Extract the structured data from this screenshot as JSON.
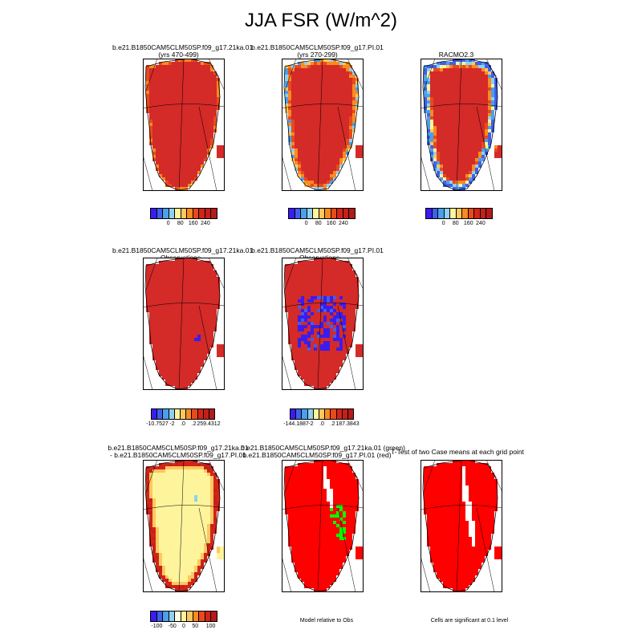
{
  "title": "JJA FSR (W/m^2)",
  "colors": {
    "scale11": [
      "#3b1cf0",
      "#4060ea",
      "#4aa0ea",
      "#8fd0f0",
      "#fdf49c",
      "#fdc860",
      "#fb8a20",
      "#e84a1c",
      "#d42418",
      "#c4201a",
      "#b41a1a"
    ],
    "diff11": [
      "#3b1cf0",
      "#4060ea",
      "#4aa0ea",
      "#8fd0f0",
      "#fdfde0",
      "#fdf49c",
      "#fdc860",
      "#fb8a20",
      "#e84a1c",
      "#d42418",
      "#b41a1a"
    ],
    "sig_red": "#ff0000",
    "sig_green": "#00ff00",
    "base_red": "#d42a28"
  },
  "panels": [
    {
      "id": "p1",
      "caption": [
        "b.e21.B1850CAM5CLM50SP.f09_g17.21ka.01",
        "(yrs 470-499)"
      ],
      "mode": "redmap"
    },
    {
      "id": "p2",
      "caption": [
        "b.e21.B1850CAM5CLM50SP.f09_g17.PI.01",
        "(yrs 270-299)"
      ],
      "mode": "rim"
    },
    {
      "id": "p3",
      "caption": [
        "RACMO2.3"
      ],
      "mode": "racmo"
    },
    {
      "id": "p4",
      "caption": [
        "b.e21.B1850CAM5CLM50SP.f09_g17.21ka.01",
        "- Observations"
      ],
      "mode": "diff1"
    },
    {
      "id": "p5",
      "caption": [
        "b.e21.B1850CAM5CLM50SP.f09_g17.PI.01",
        "- Observations"
      ],
      "mode": "diff2"
    },
    {
      "id": "p6",
      "caption": [
        "b.e21.B1850CAM5CLM50SP.f09_g17.21ka.01",
        "- b.e21.B1850CAM5CLM50SP.f09_g17.PI.01"
      ],
      "mode": "casediff"
    },
    {
      "id": "p7",
      "caption": [
        "b.e21.B1850CAM5CLM50SP.f09_g17.21ka.01 (green)",
        "b.e21.B1850CAM5CLM50SP.f09_g17.PI.01 (red)"
      ],
      "mode": "sig2"
    },
    {
      "id": "p8",
      "caption": [
        "T-Test of two Case means at each grid point"
      ],
      "mode": "ttest"
    }
  ],
  "colorbars": {
    "cb1": {
      "ticks": [
        "0",
        "80",
        "160",
        "240"
      ]
    },
    "cb2": {
      "ticks": [
        "0",
        "80",
        "160",
        "240"
      ]
    },
    "cb3": {
      "ticks": [
        "0",
        "80",
        "160",
        "240"
      ]
    },
    "cb4": {
      "ticks": [
        "-10.7527",
        "-2",
        ".0",
        ".2",
        "259.4312"
      ]
    },
    "cb5": {
      "ticks": [
        "-144.1887",
        "-2",
        ".0",
        ".2",
        "187.3843"
      ]
    },
    "cb6": {
      "ticks": [
        "-100",
        "-50",
        "0",
        "50",
        "100"
      ]
    }
  },
  "notes": {
    "model_relative": "Model relative to Obs",
    "cells_significant": "Cells are significant at 0.1 level"
  }
}
